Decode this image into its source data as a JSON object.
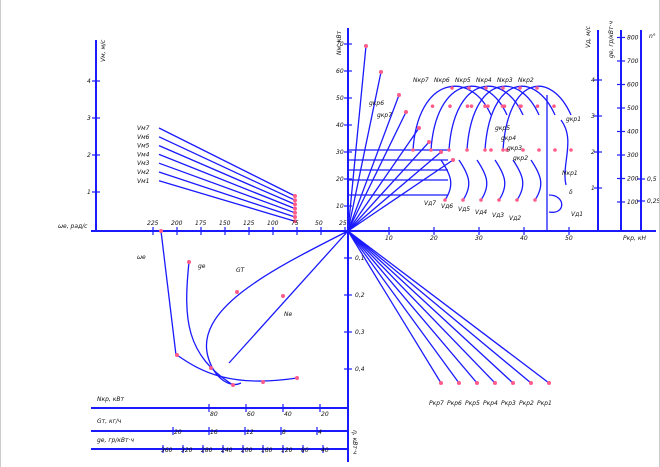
{
  "labels": {
    "n_axis": "Nм, кВт",
    "w_axis": "ωе, рад/с",
    "v_axis": "Vм, м/с",
    "vd_axis": "Vд, м/с",
    "gd_axis": "gе, гр/кВт·ч",
    "n_deg": "n°",
    "p_axis": "Pкр, кН",
    "nkr_axis": "Nкр, кВт",
    "gt_axis": "Gт, кг/ч",
    "ge2_axis": "gе, гр/кВт·ч",
    "eta_axis": "η, кВт·ч",
    "we_curve": "ωе",
    "ge_curve": "gе",
    "gt_curve": "GТ",
    "ne_curve": "Nе",
    "delta": "δ",
    "vd1": "Vд1"
  },
  "scales": {
    "nm": [
      "10",
      "20",
      "30",
      "40",
      "50",
      "60",
      "70"
    ],
    "we": [
      "225",
      "200",
      "175",
      "150",
      "125",
      "100",
      "75",
      "50",
      "25"
    ],
    "vm_left": [
      "1",
      "2",
      "3",
      "4"
    ],
    "p_right": [
      "10",
      "20",
      "30",
      "40",
      "50"
    ],
    "eta_down": [
      "0,1",
      "0,2",
      "0,3",
      "0,4"
    ],
    "vd": [
      "1",
      "2",
      "3",
      "4"
    ],
    "gd": [
      "100",
      "200",
      "300",
      "400",
      "500",
      "600",
      "700",
      "800"
    ],
    "n_deg": [
      "0,25",
      "0,5"
    ],
    "nkr": [
      "80",
      "60",
      "40",
      "20"
    ],
    "gt": [
      "20",
      "16",
      "12",
      "8",
      "4"
    ],
    "ge2": [
      "360",
      "320",
      "280",
      "240",
      "200",
      "160",
      "120",
      "80",
      "40"
    ]
  },
  "curve_labels": {
    "vm": [
      "Vм7",
      "Vм6",
      "Vм5",
      "Vм4",
      "Vм3",
      "Vм2",
      "Vм1"
    ],
    "nkr_top": [
      "Nкр7",
      "Nкр6",
      "Nкр5",
      "Nкр4",
      "Nкр3",
      "Nкр2"
    ],
    "gkr_left": [
      "gкр6",
      "gкр7"
    ],
    "gkr_mid": [
      "gкр5",
      "gкр4",
      "gкр3",
      "gкр2"
    ],
    "gkr_right": "gкр1",
    "nkr_right": "Nкр1",
    "vd_list": [
      "Vд7",
      "Vд6",
      "Vд5",
      "Vд4",
      "Vд3",
      "Vд2"
    ],
    "pkr_list": [
      "Pкр7",
      "Pкр6",
      "Pкр5",
      "Pкр4",
      "Pкр3",
      "Pкр2",
      "Pкр1"
    ]
  },
  "colors": {
    "lines": "#1a1aff",
    "points": "#ff5c8a",
    "text": "#111111"
  }
}
